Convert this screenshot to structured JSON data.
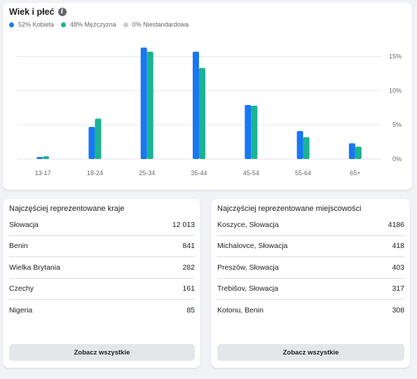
{
  "age_gender": {
    "title": "Wiek i płeć",
    "legend": [
      {
        "label": "52% Kobieta",
        "color": "#1877f2"
      },
      {
        "label": "48% Mężczyzna",
        "color": "#1ab394"
      },
      {
        "label": "0% Niestandardowa",
        "color": "#c9ccd1"
      }
    ]
  },
  "chart_data": {
    "type": "bar",
    "categories": [
      "13-17",
      "18-24",
      "25-34",
      "35-44",
      "45-54",
      "55-64",
      "65+"
    ],
    "series": [
      {
        "name": "52% Kobieta",
        "color": "#1877f2",
        "values": [
          0.3,
          4.7,
          16.3,
          15.7,
          7.9,
          4.1,
          2.3
        ]
      },
      {
        "name": "48% Mężczyzna",
        "color": "#1ab394",
        "values": [
          0.4,
          5.9,
          15.7,
          13.3,
          7.8,
          3.2,
          1.8
        ]
      }
    ],
    "yticks": [
      "0%",
      "5%",
      "10%",
      "15%"
    ],
    "ylim": [
      0,
      17
    ],
    "grid": true
  },
  "countries": {
    "title": "Najczęściej reprezentowane kraje",
    "rows": [
      {
        "name": "Słowacja",
        "value": "12 013"
      },
      {
        "name": "Benin",
        "value": "841"
      },
      {
        "name": "Wielka Brytania",
        "value": "282"
      },
      {
        "name": "Czechy",
        "value": "161"
      },
      {
        "name": "Nigeria",
        "value": "85"
      }
    ],
    "button": "Zobacz wszystkie"
  },
  "cities": {
    "title": "Najczęściej reprezentowane miejscowości",
    "rows": [
      {
        "name": "Koszyce, Słowacja",
        "value": "4186"
      },
      {
        "name": "Michalovce, Słowacja",
        "value": "418"
      },
      {
        "name": "Preszów, Słowacja",
        "value": "403"
      },
      {
        "name": "Trebišov, Słowacja",
        "value": "317"
      },
      {
        "name": "Kotonu, Benin",
        "value": "308"
      }
    ],
    "button": "Zobacz wszystkie"
  }
}
